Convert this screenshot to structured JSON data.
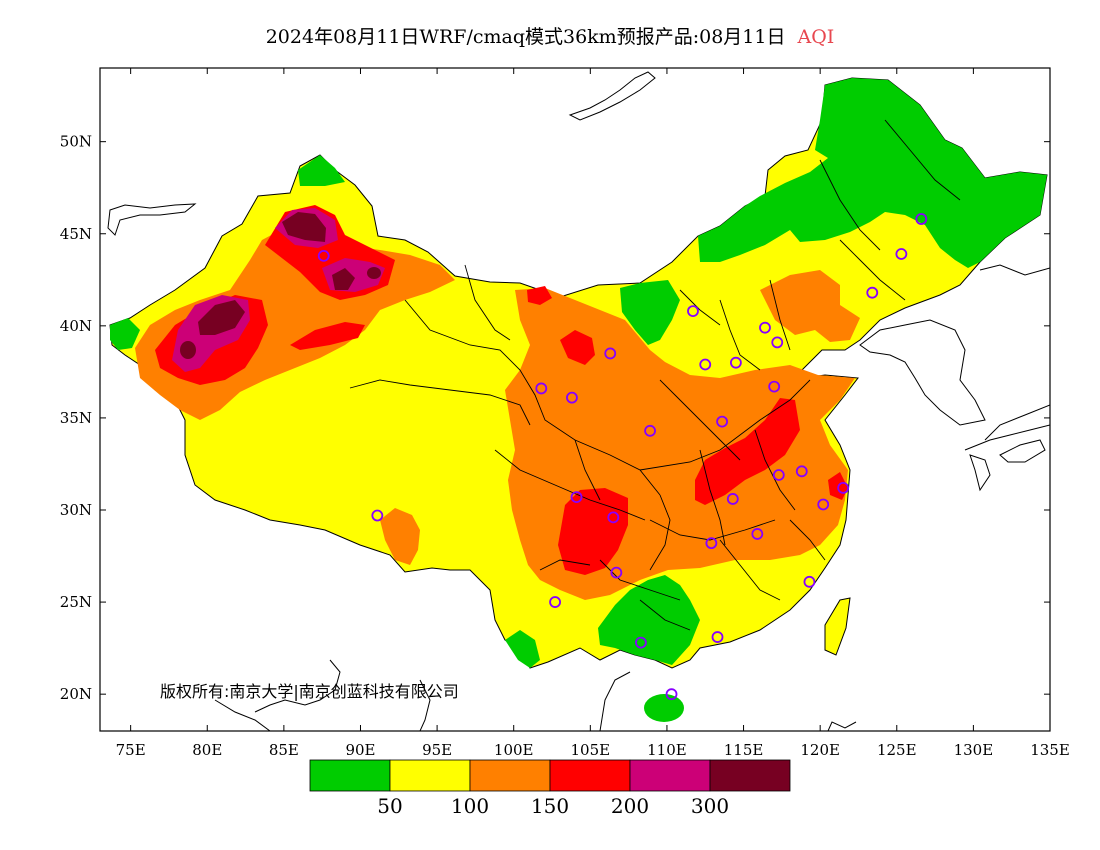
{
  "title": {
    "main": "2024年08月11日WRF/cmaq模式36km预报产品:08月11日",
    "variable": "AQI",
    "variable_color": "#e8474f"
  },
  "copyright": "版权所有:南京大学|南京创蓝科技有限公司",
  "axes": {
    "x_ticks": [
      "75E",
      "80E",
      "85E",
      "90E",
      "95E",
      "100E",
      "105E",
      "110E",
      "115E",
      "120E",
      "125E",
      "130E",
      "135E"
    ],
    "y_ticks": [
      "20N",
      "25N",
      "30N",
      "35N",
      "40N",
      "45N",
      "50N"
    ],
    "lon_range": [
      73,
      135
    ],
    "lat_range": [
      18,
      54
    ]
  },
  "colorbar": {
    "colors": [
      "#00cc00",
      "#ffff00",
      "#ff8000",
      "#ff0000",
      "#cc0077",
      "#770022"
    ],
    "labels": [
      "50",
      "100",
      "150",
      "200",
      "300"
    ]
  },
  "chart_data": {
    "type": "heatmap",
    "variable": "AQI",
    "levels": [
      0,
      50,
      100,
      150,
      200,
      300
    ],
    "categories": [
      {
        "range": "0-50",
        "color": "#00cc00"
      },
      {
        "range": "50-100",
        "color": "#ffff00"
      },
      {
        "range": "100-150",
        "color": "#ff8000"
      },
      {
        "range": "150-200",
        "color": "#ff0000"
      },
      {
        "range": "200-300",
        "color": "#cc0077"
      },
      {
        "range": ">300",
        "color": "#770022"
      }
    ],
    "stations": [
      {
        "lon": 126.6,
        "lat": 45.8
      },
      {
        "lon": 125.3,
        "lat": 43.9
      },
      {
        "lon": 123.4,
        "lat": 41.8
      },
      {
        "lon": 116.4,
        "lat": 39.9
      },
      {
        "lon": 117.2,
        "lat": 39.1
      },
      {
        "lon": 114.5,
        "lat": 38.0
      },
      {
        "lon": 112.5,
        "lat": 37.9
      },
      {
        "lon": 111.7,
        "lat": 40.8
      },
      {
        "lon": 106.3,
        "lat": 38.5
      },
      {
        "lon": 103.8,
        "lat": 36.1
      },
      {
        "lon": 101.8,
        "lat": 36.6
      },
      {
        "lon": 108.9,
        "lat": 34.3
      },
      {
        "lon": 113.6,
        "lat": 34.8
      },
      {
        "lon": 117.0,
        "lat": 36.7
      },
      {
        "lon": 118.8,
        "lat": 32.1
      },
      {
        "lon": 117.3,
        "lat": 31.9
      },
      {
        "lon": 121.5,
        "lat": 31.2
      },
      {
        "lon": 120.2,
        "lat": 30.3
      },
      {
        "lon": 114.3,
        "lat": 30.6
      },
      {
        "lon": 104.1,
        "lat": 30.7
      },
      {
        "lon": 106.5,
        "lat": 29.6
      },
      {
        "lon": 112.9,
        "lat": 28.2
      },
      {
        "lon": 115.9,
        "lat": 28.7
      },
      {
        "lon": 106.7,
        "lat": 26.6
      },
      {
        "lon": 102.7,
        "lat": 25.0
      },
      {
        "lon": 119.3,
        "lat": 26.1
      },
      {
        "lon": 113.3,
        "lat": 23.1
      },
      {
        "lon": 108.3,
        "lat": 22.8
      },
      {
        "lon": 110.3,
        "lat": 20.0
      },
      {
        "lon": 91.1,
        "lat": 29.7
      },
      {
        "lon": 87.6,
        "lat": 43.8
      }
    ]
  }
}
